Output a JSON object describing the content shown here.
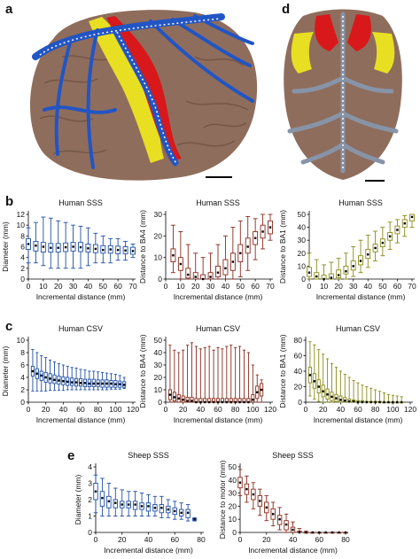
{
  "panel_labels": {
    "a": "a",
    "b": "b",
    "c": "c",
    "d": "d",
    "e": "e"
  },
  "colors": {
    "blue": "#1f4fa6",
    "red": "#8b2a1c",
    "olive": "#8a8a18",
    "cortex": "#8f6d5c",
    "vessel_blue": "#2255c4",
    "yellow": "#e8df22",
    "motor_red": "#d8181a",
    "sheep_vessel": "#8794a8"
  },
  "icons": {
    "brain_human": "brain-illustration",
    "brain_sheep": "brain-illustration"
  },
  "chart_data": [
    {
      "id": "b1",
      "type": "box",
      "title": "Human SSS",
      "xlabel": "Incremental distance (mm)",
      "ylabel": "Diameter (mm)",
      "color": "#1f4fa6",
      "xlim": [
        0,
        70
      ],
      "ylim": [
        0,
        12
      ],
      "xticks": [
        0,
        10,
        20,
        30,
        40,
        50,
        60,
        70
      ],
      "yticks": [
        0,
        2,
        4,
        6,
        8,
        10,
        12
      ],
      "x": [
        0,
        5,
        10,
        15,
        20,
        25,
        30,
        35,
        40,
        45,
        50,
        55,
        60,
        65,
        70
      ],
      "median": [
        6.5,
        6.2,
        6.0,
        5.8,
        5.8,
        5.9,
        6.0,
        5.9,
        5.7,
        5.6,
        5.4,
        5.5,
        5.4,
        5.3,
        5.2
      ],
      "q1": [
        5.5,
        5.2,
        5.0,
        5.0,
        5.0,
        5.1,
        5.2,
        5.1,
        5.0,
        4.9,
        4.8,
        4.8,
        4.7,
        4.7,
        4.6
      ],
      "q3": [
        7.5,
        7.0,
        6.8,
        6.6,
        6.6,
        6.7,
        6.8,
        6.8,
        6.5,
        6.4,
        6.2,
        6.2,
        6.1,
        6.0,
        5.9
      ],
      "min": [
        3,
        3,
        2.5,
        2,
        2,
        2,
        2,
        2,
        2.5,
        3,
        3,
        3,
        3.5,
        3.5,
        4
      ],
      "max": [
        9.5,
        10.5,
        11.5,
        11.3,
        10.8,
        10.5,
        10,
        9.8,
        9.5,
        8.5,
        8,
        7.5,
        7.5,
        7,
        6.5
      ]
    },
    {
      "id": "b2",
      "type": "box",
      "title": "Human SSS",
      "xlabel": "Incremental distance (mm)",
      "ylabel": "Distance to BA4 (mm)",
      "color": "#8b2a1c",
      "xlim": [
        0,
        70
      ],
      "ylim": [
        0,
        30
      ],
      "xticks": [
        0,
        10,
        20,
        30,
        40,
        50,
        60,
        70
      ],
      "yticks": [
        0,
        10,
        20,
        30
      ],
      "x": [
        5,
        10,
        15,
        20,
        25,
        30,
        35,
        40,
        45,
        50,
        55,
        60,
        65,
        70
      ],
      "median": [
        11,
        7,
        2,
        1,
        0,
        1,
        3,
        5,
        8,
        12,
        15,
        19,
        22,
        24
      ],
      "q1": [
        8,
        4,
        0.5,
        0,
        0,
        0,
        1,
        2,
        4,
        8,
        12,
        16,
        19,
        21
      ],
      "q3": [
        14,
        10,
        5,
        3,
        2,
        3,
        6,
        9,
        12,
        16,
        19,
        22,
        25,
        27
      ],
      "min": [
        3,
        0,
        0,
        0,
        0,
        0,
        0,
        0,
        0,
        1,
        4,
        9,
        14,
        18
      ],
      "max": [
        25,
        22,
        16,
        12,
        10,
        12,
        16,
        20,
        24,
        27,
        29,
        28,
        30,
        30
      ]
    },
    {
      "id": "b3",
      "type": "box",
      "title": "Human SSS",
      "xlabel": "Incremental distance (mm)",
      "ylabel": "Distance to BA1 (mm)",
      "color": "#8a8a18",
      "xlim": [
        0,
        70
      ],
      "ylim": [
        0,
        50
      ],
      "xticks": [
        0,
        10,
        20,
        30,
        40,
        50,
        60,
        70
      ],
      "yticks": [
        0,
        10,
        20,
        30,
        40,
        50
      ],
      "x": [
        0,
        5,
        10,
        15,
        20,
        25,
        30,
        35,
        40,
        45,
        50,
        55,
        60,
        65,
        70
      ],
      "median": [
        5,
        2,
        0,
        1,
        3,
        6,
        10,
        14,
        19,
        24,
        28,
        33,
        38,
        43,
        48
      ],
      "q1": [
        2,
        0,
        0,
        0,
        1,
        4,
        7,
        11,
        16,
        21,
        25,
        30,
        35,
        40,
        45
      ],
      "q3": [
        9,
        5,
        3,
        4,
        7,
        10,
        14,
        18,
        23,
        27,
        31,
        36,
        41,
        46,
        50
      ],
      "min": [
        0,
        0,
        0,
        0,
        0,
        0,
        2,
        5,
        9,
        14,
        18,
        23,
        28,
        33,
        40
      ],
      "max": [
        20,
        15,
        11,
        13,
        16,
        20,
        25,
        30,
        34,
        37,
        40,
        44,
        46,
        49,
        50
      ]
    },
    {
      "id": "c1",
      "type": "box",
      "title": "Human CSV",
      "xlabel": "Incremental distance (mm)",
      "ylabel": "Diameter (mm)",
      "color": "#1f4fa6",
      "xlim": [
        0,
        120
      ],
      "ylim": [
        0,
        10
      ],
      "xticks": [
        0,
        20,
        40,
        60,
        80,
        100,
        120
      ],
      "yticks": [
        0,
        2,
        4,
        6,
        8,
        10
      ],
      "x": [
        5,
        10,
        15,
        20,
        25,
        30,
        35,
        40,
        45,
        50,
        55,
        60,
        65,
        70,
        75,
        80,
        85,
        90,
        95,
        100,
        105,
        110
      ],
      "median": [
        5,
        4.6,
        4.3,
        4,
        3.8,
        3.6,
        3.5,
        3.4,
        3.3,
        3.2,
        3.2,
        3.1,
        3.1,
        3,
        3,
        3,
        3,
        3,
        3,
        2.9,
        2.9,
        2.8
      ],
      "q1": [
        4.2,
        3.8,
        3.5,
        3.2,
        3.1,
        3,
        2.9,
        2.8,
        2.7,
        2.7,
        2.6,
        2.6,
        2.5,
        2.5,
        2.5,
        2.5,
        2.4,
        2.4,
        2.4,
        2.4,
        2.4,
        2.4
      ],
      "q3": [
        5.8,
        5.4,
        5,
        4.8,
        4.6,
        4.4,
        4.2,
        4.1,
        4,
        3.9,
        3.8,
        3.8,
        3.7,
        3.7,
        3.7,
        3.6,
        3.6,
        3.6,
        3.5,
        3.5,
        3.4,
        3.3
      ],
      "min": [
        1.8,
        1.8,
        1.8,
        1.8,
        1.9,
        1.9,
        1.9,
        1.9,
        2,
        2,
        2,
        2,
        2,
        2,
        2,
        2,
        2,
        2,
        2.1,
        2.1,
        2.1,
        2.2
      ],
      "max": [
        8.5,
        8,
        7.5,
        7.2,
        6.8,
        6.5,
        6.2,
        6,
        5.8,
        5.6,
        5.5,
        5.3,
        5.2,
        5,
        5,
        4.9,
        4.8,
        4.7,
        4.6,
        4.5,
        4.3,
        4
      ]
    },
    {
      "id": "c2",
      "type": "box",
      "title": "Human CSV",
      "xlabel": "Incremental distance (mm)",
      "ylabel": "Distance to BA4 (mm)",
      "color": "#8b2a1c",
      "xlim": [
        0,
        120
      ],
      "ylim": [
        0,
        50
      ],
      "xticks": [
        0,
        20,
        40,
        60,
        80,
        100,
        120
      ],
      "yticks": [
        0,
        10,
        20,
        30,
        40,
        50
      ],
      "x": [
        5,
        10,
        15,
        20,
        25,
        30,
        35,
        40,
        45,
        50,
        55,
        60,
        65,
        70,
        75,
        80,
        85,
        90,
        95,
        100,
        105,
        110
      ],
      "median": [
        6,
        4,
        3,
        2,
        1,
        1,
        0,
        0,
        0,
        0,
        0,
        0,
        0,
        0,
        0,
        0,
        0,
        0,
        0,
        2,
        8,
        10
      ],
      "q1": [
        2,
        1,
        0,
        0,
        0,
        0,
        0,
        0,
        0,
        0,
        0,
        0,
        0,
        0,
        0,
        0,
        0,
        0,
        0,
        0,
        3,
        5
      ],
      "q3": [
        10,
        8,
        6,
        5,
        4,
        4,
        3,
        3,
        3,
        3,
        3,
        3,
        3,
        3,
        3,
        3,
        3,
        3,
        3,
        6,
        13,
        15
      ],
      "min": [
        0,
        0,
        0,
        0,
        0,
        0,
        0,
        0,
        0,
        0,
        0,
        0,
        0,
        0,
        0,
        0,
        0,
        0,
        0,
        0,
        0,
        0
      ],
      "max": [
        46,
        42,
        40,
        42,
        46,
        48,
        45,
        43,
        44,
        45,
        42,
        44,
        43,
        45,
        46,
        44,
        45,
        42,
        40,
        30,
        22,
        18
      ]
    },
    {
      "id": "c3",
      "type": "box",
      "title": "Human CSV",
      "xlabel": "Incremental distance (mm)",
      "ylabel": "Distance to BA1 (mm)",
      "color": "#8a8a18",
      "xlim": [
        0,
        120
      ],
      "ylim": [
        0,
        80
      ],
      "xticks": [
        0,
        20,
        40,
        60,
        80,
        100,
        120
      ],
      "yticks": [
        0,
        20,
        40,
        60,
        80
      ],
      "x": [
        5,
        10,
        15,
        20,
        25,
        30,
        35,
        40,
        45,
        50,
        55,
        60,
        65,
        70,
        75,
        80,
        85,
        90,
        95,
        100,
        105,
        110
      ],
      "median": [
        35,
        27,
        20,
        14,
        10,
        7,
        5,
        3,
        2,
        1,
        1,
        0,
        0,
        0,
        0,
        0,
        0,
        0,
        0,
        0,
        0,
        0
      ],
      "q1": [
        25,
        18,
        12,
        7,
        4,
        2,
        1,
        0,
        0,
        0,
        0,
        0,
        0,
        0,
        0,
        0,
        0,
        0,
        0,
        0,
        0,
        0
      ],
      "q3": [
        45,
        37,
        29,
        22,
        17,
        13,
        10,
        8,
        6,
        4,
        3,
        2,
        2,
        1,
        1,
        1,
        1,
        0,
        0,
        0,
        0,
        0
      ],
      "min": [
        8,
        4,
        1,
        0,
        0,
        0,
        0,
        0,
        0,
        0,
        0,
        0,
        0,
        0,
        0,
        0,
        0,
        0,
        0,
        0,
        0,
        0
      ],
      "max": [
        78,
        74,
        68,
        62,
        56,
        50,
        45,
        40,
        36,
        32,
        28,
        25,
        22,
        20,
        18,
        16,
        14,
        12,
        10,
        9,
        8,
        7
      ]
    },
    {
      "id": "e1",
      "type": "box",
      "title": "Sheep SSS",
      "xlabel": "Incremental distance (mm)",
      "ylabel": "Diameter (mm)",
      "color": "#1f4fa6",
      "xlim": [
        0,
        80
      ],
      "ylim": [
        0,
        4
      ],
      "xticks": [
        0,
        20,
        40,
        60,
        80
      ],
      "yticks": [
        0,
        1,
        2,
        3,
        4
      ],
      "x": [
        0,
        5,
        10,
        15,
        20,
        25,
        30,
        35,
        40,
        45,
        50,
        55,
        60,
        65,
        70,
        75
      ],
      "median": [
        2.5,
        2.1,
        1.9,
        1.8,
        1.7,
        1.7,
        1.7,
        1.6,
        1.6,
        1.5,
        1.5,
        1.4,
        1.3,
        1.2,
        1.2,
        0.8
      ],
      "q1": [
        2.0,
        1.6,
        1.5,
        1.5,
        1.5,
        1.5,
        1.4,
        1.4,
        1.3,
        1.3,
        1.2,
        1.2,
        1.1,
        1.0,
        0.9,
        0.75
      ],
      "q3": [
        3.0,
        2.5,
        2.2,
        2.0,
        1.9,
        1.9,
        1.9,
        1.8,
        1.8,
        1.7,
        1.7,
        1.6,
        1.5,
        1.4,
        1.4,
        0.85
      ],
      "min": [
        1.2,
        1.0,
        1.0,
        1.0,
        1.0,
        1.0,
        1.0,
        1.0,
        1.0,
        1.0,
        0.9,
        0.9,
        0.8,
        0.8,
        0.7,
        0.7
      ],
      "max": [
        3.5,
        3.3,
        3.0,
        2.7,
        2.6,
        2.5,
        2.5,
        2.4,
        2.3,
        2.2,
        2.2,
        2.0,
        1.9,
        1.8,
        1.7,
        0.9
      ]
    },
    {
      "id": "e2",
      "type": "box",
      "title": "Sheep SSS",
      "xlabel": "Incremental distance (mm)",
      "ylabel": "Distance to motor (mm)",
      "color": "#8b2a1c",
      "xlim": [
        0,
        80
      ],
      "ylim": [
        0,
        50
      ],
      "xticks": [
        0,
        20,
        40,
        60,
        80
      ],
      "yticks": [
        0,
        10,
        20,
        30,
        40,
        50
      ],
      "x": [
        0,
        5,
        10,
        15,
        20,
        25,
        30,
        35,
        40,
        45,
        50,
        55,
        60,
        65,
        70,
        75,
        80
      ],
      "median": [
        38,
        33,
        29,
        24,
        19,
        14,
        10,
        6,
        2,
        0,
        0,
        0,
        0,
        0,
        0,
        0,
        0
      ],
      "q1": [
        34,
        29,
        25,
        20,
        15,
        10,
        6,
        2,
        0,
        0,
        0,
        0,
        0,
        0,
        0,
        0,
        0
      ],
      "q3": [
        42,
        37,
        33,
        28,
        23,
        18,
        13,
        9,
        4,
        1,
        0,
        0,
        0,
        0,
        0,
        0,
        0
      ],
      "min": [
        28,
        23,
        18,
        13,
        9,
        5,
        2,
        0,
        0,
        0,
        0,
        0,
        0,
        0,
        0,
        0,
        0
      ],
      "max": [
        48,
        43,
        38,
        33,
        28,
        23,
        19,
        14,
        8,
        3,
        1,
        0,
        0,
        0,
        0,
        0,
        0
      ]
    }
  ]
}
